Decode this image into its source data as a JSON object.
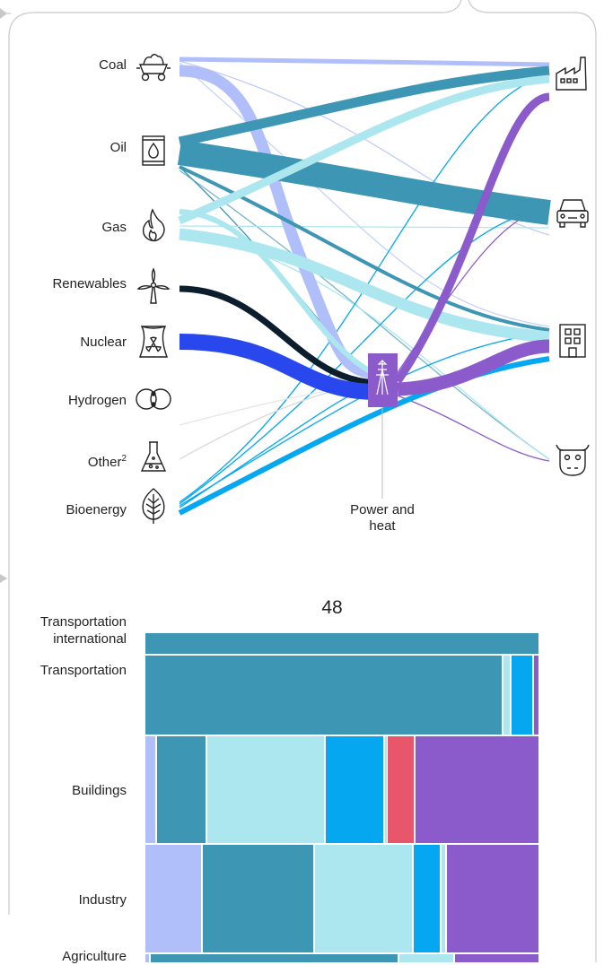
{
  "sources": [
    {
      "label": "Coal",
      "icon": "coal-cart-icon"
    },
    {
      "label": "Oil",
      "icon": "oil-barrel-icon"
    },
    {
      "label": "Gas",
      "icon": "flame-icon"
    },
    {
      "label": "Renewables",
      "icon": "wind-turbine-icon"
    },
    {
      "label": "Nuclear",
      "icon": "cooling-tower-radiation-icon"
    },
    {
      "label": "Hydrogen",
      "icon": "hydrogen-molecule-icon"
    },
    {
      "label": "Other",
      "label_sup": "2",
      "icon": "flask-icon"
    },
    {
      "label": "Bioenergy",
      "icon": "leaf-icon"
    }
  ],
  "sinks": [
    {
      "icon": "factory-icon"
    },
    {
      "icon": "car-icon"
    },
    {
      "icon": "building-icon"
    },
    {
      "icon": "cow-icon"
    }
  ],
  "power_node": {
    "label_line1": "Power and",
    "label_line2": "heat",
    "icon": "power-pylon-icon"
  },
  "total_label": "48",
  "sector_rows": [
    {
      "label_line1": "Transportation",
      "label_line2": "international"
    },
    {
      "label_line1": "Transportation",
      "label_line2": ""
    },
    {
      "label_line1": "Buildings",
      "label_line2": ""
    },
    {
      "label_line1": "Industry",
      "label_line2": ""
    },
    {
      "label_line1": "Agriculture",
      "label_line2": ""
    }
  ],
  "colors": {
    "coal": "#b0bff9",
    "oil": "#3d96b4",
    "gas": "#ace6ef",
    "renewables": "#0c1e2d",
    "nuclear": "#2848ee",
    "bioenergy": "#04a7f0",
    "power": "#8b5bcb",
    "hydrogen": "#e8566b",
    "connector": "#bdbdbd"
  }
}
